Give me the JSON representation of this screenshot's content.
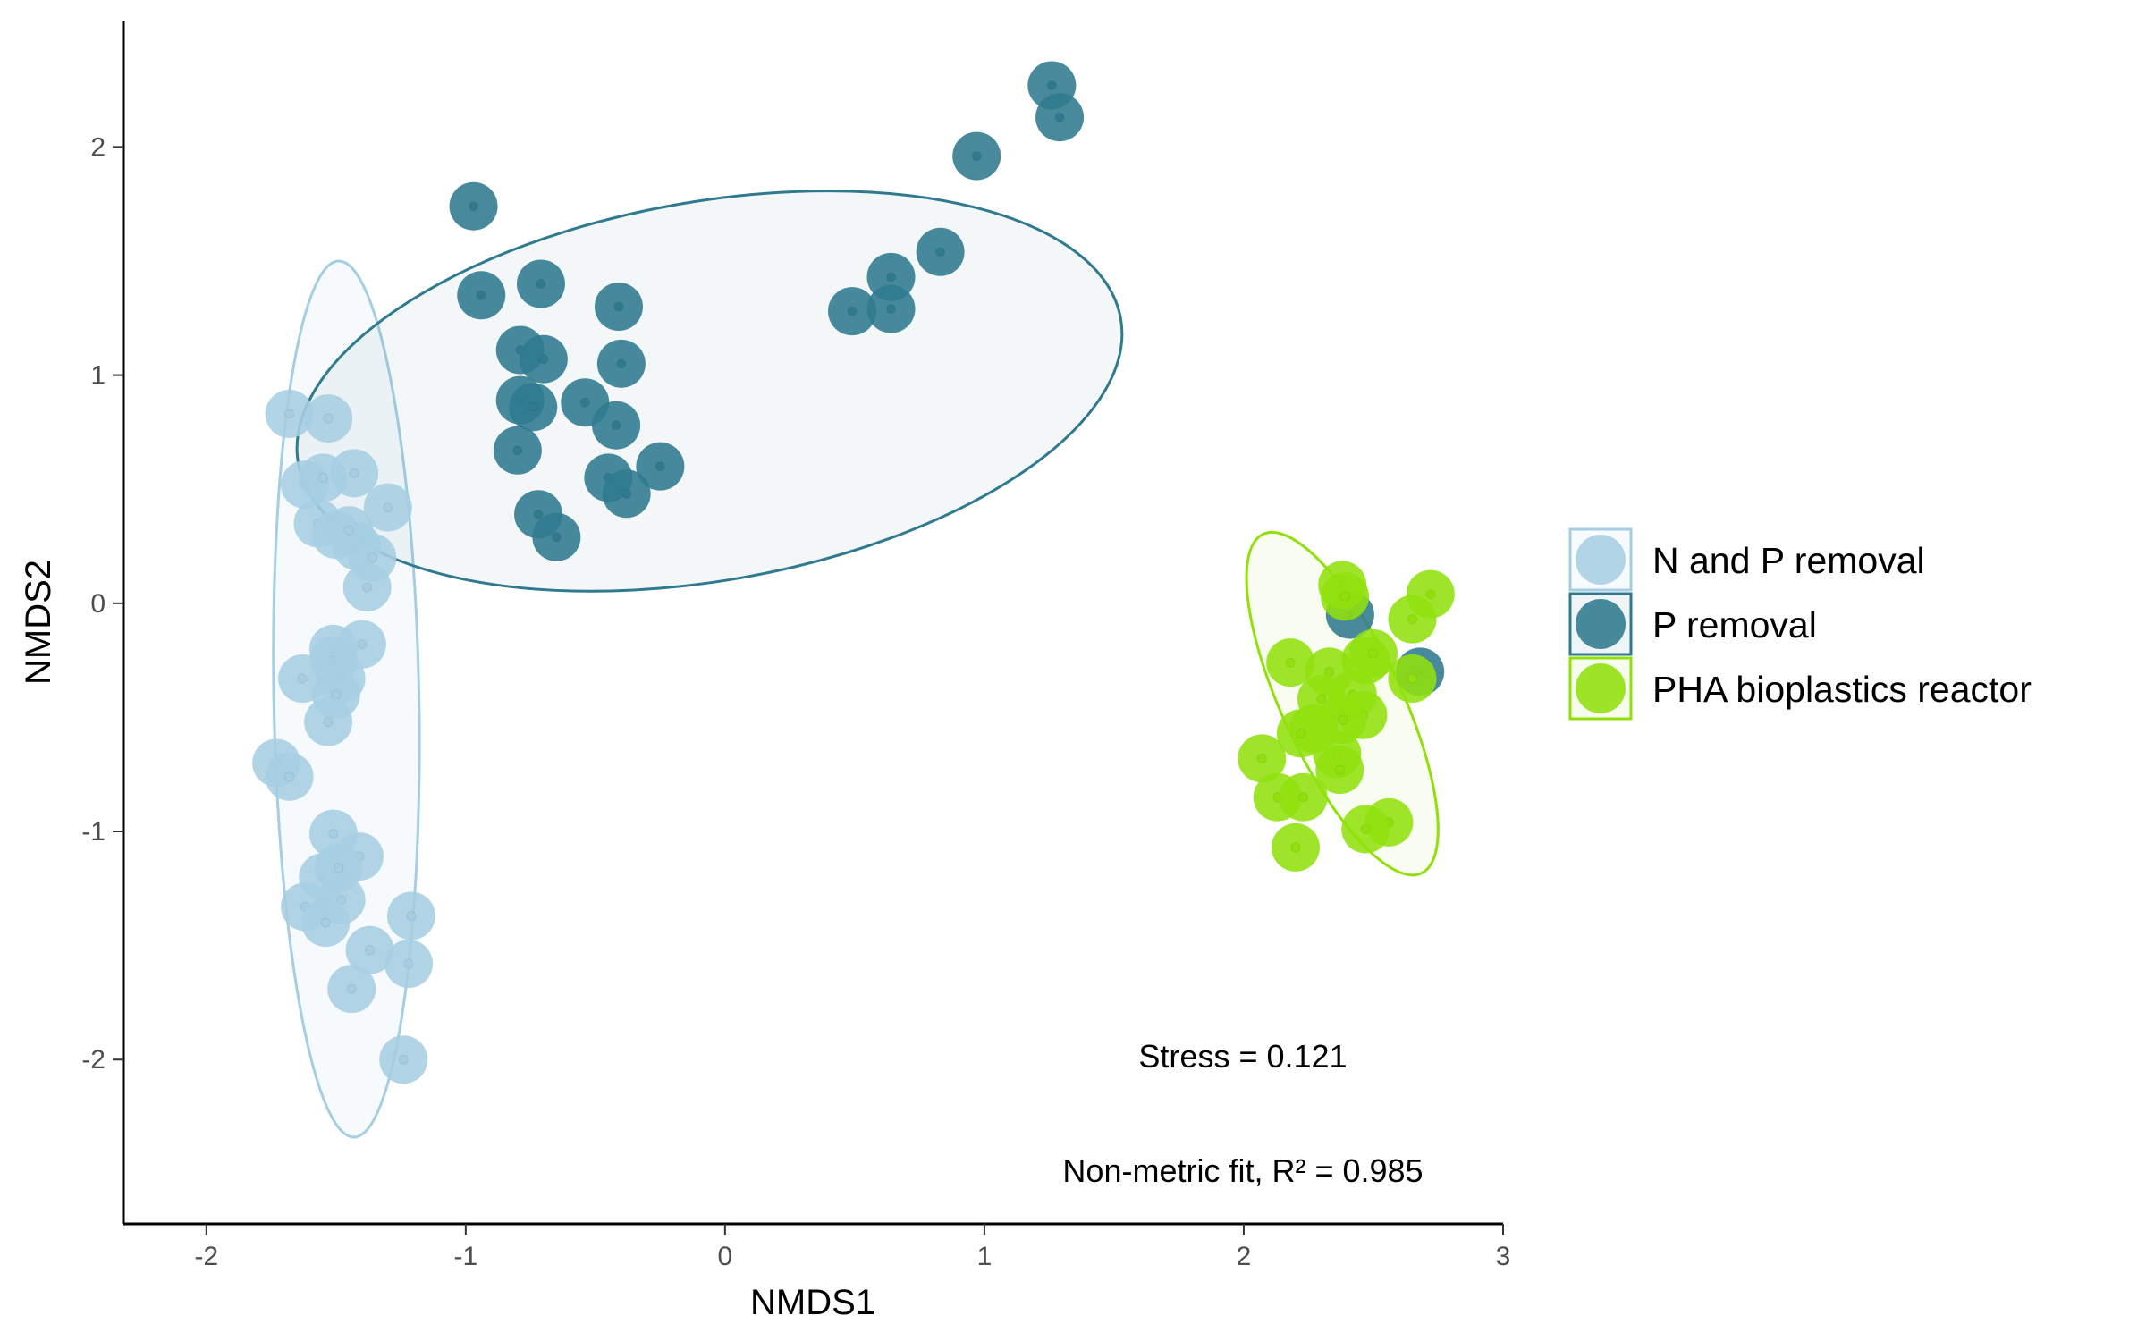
{
  "chart_data": {
    "type": "scatter",
    "xlabel": "NMDS1",
    "ylabel": "NMDS2",
    "xlim": [
      -2.32,
      3.0
    ],
    "ylim": [
      -2.72,
      2.55
    ],
    "xticks": [
      "-2",
      "-1",
      "0",
      "1",
      "2",
      "3"
    ],
    "yticks": [
      "-2",
      "-1",
      "0",
      "1",
      "2"
    ],
    "xtick_values": [
      -2,
      -1,
      0,
      1,
      2,
      3
    ],
    "ytick_values": [
      -2,
      -1,
      0,
      1,
      2
    ],
    "grid": false,
    "legend_position": "right",
    "annotations": [
      "Stress = 0.121",
      "Non-metric fit, R² = 0.985"
    ],
    "series": [
      {
        "name": "N and P removal",
        "color": "#a6cee3",
        "ellipse": {
          "cx": -1.46,
          "cy": -0.42,
          "rx": 0.28,
          "ry": 1.92,
          "angle_deg": 1,
          "fill_opacity": 0.1
        },
        "x": [
          -1.68,
          -1.53,
          -1.62,
          -1.55,
          -1.43,
          -1.57,
          -1.3,
          -1.5,
          -1.42,
          -1.36,
          -1.45,
          -1.38,
          -1.4,
          -1.51,
          -1.51,
          -1.48,
          -1.63,
          -1.5,
          -1.53,
          -1.73,
          -1.68,
          -1.51,
          -1.41,
          -1.55,
          -1.49,
          -1.62,
          -1.48,
          -1.54,
          -1.21,
          -1.37,
          -1.22,
          -1.44,
          -1.24
        ],
        "y": [
          0.83,
          0.81,
          0.52,
          0.55,
          0.57,
          0.35,
          0.42,
          0.3,
          0.25,
          0.2,
          0.32,
          0.07,
          -0.18,
          -0.2,
          -0.25,
          -0.33,
          -0.33,
          -0.4,
          -0.52,
          -0.7,
          -0.76,
          -1.01,
          -1.11,
          -1.2,
          -1.16,
          -1.33,
          -1.3,
          -1.4,
          -1.37,
          -1.52,
          -1.58,
          -1.69,
          -2.0
        ]
      },
      {
        "name": "P removal",
        "color": "#2f7a8e",
        "ellipse": {
          "cx": -0.06,
          "cy": 0.93,
          "rx": 1.61,
          "ry": 0.83,
          "angle_deg": 10,
          "fill_opacity": 0.06
        },
        "x": [
          1.26,
          1.29,
          0.97,
          -0.97,
          0.83,
          -0.94,
          -0.71,
          0.64,
          0.49,
          -0.41,
          0.64,
          -0.79,
          -0.7,
          -0.4,
          -0.79,
          -0.74,
          -0.54,
          -0.42,
          -0.8,
          -0.25,
          -0.45,
          -0.38,
          -0.72,
          -0.65,
          2.41,
          2.68
        ],
        "y": [
          2.27,
          2.13,
          1.96,
          1.74,
          1.54,
          1.35,
          1.4,
          1.43,
          1.28,
          1.3,
          1.29,
          1.11,
          1.07,
          1.05,
          0.89,
          0.86,
          0.88,
          0.78,
          0.67,
          0.6,
          0.55,
          0.48,
          0.39,
          0.29,
          -0.05,
          -0.3
        ]
      },
      {
        "name": "PHA bioplastics reactor",
        "color": "#91e00c",
        "ellipse": {
          "cx": 2.38,
          "cy": -0.44,
          "rx": 0.23,
          "ry": 0.82,
          "angle_deg": 25,
          "fill_opacity": 0.06
        },
        "x": [
          2.38,
          2.39,
          2.72,
          2.65,
          2.18,
          2.33,
          2.47,
          2.5,
          2.65,
          2.42,
          2.3,
          2.46,
          2.38,
          2.27,
          2.22,
          2.36,
          2.07,
          2.37,
          2.13,
          2.23,
          2.56,
          2.47,
          2.2
        ],
        "y": [
          0.08,
          0.03,
          0.04,
          -0.07,
          -0.26,
          -0.3,
          -0.25,
          -0.22,
          -0.33,
          -0.4,
          -0.42,
          -0.49,
          -0.51,
          -0.55,
          -0.57,
          -0.66,
          -0.68,
          -0.73,
          -0.85,
          -0.85,
          -0.96,
          -0.99,
          -1.07
        ]
      }
    ]
  }
}
